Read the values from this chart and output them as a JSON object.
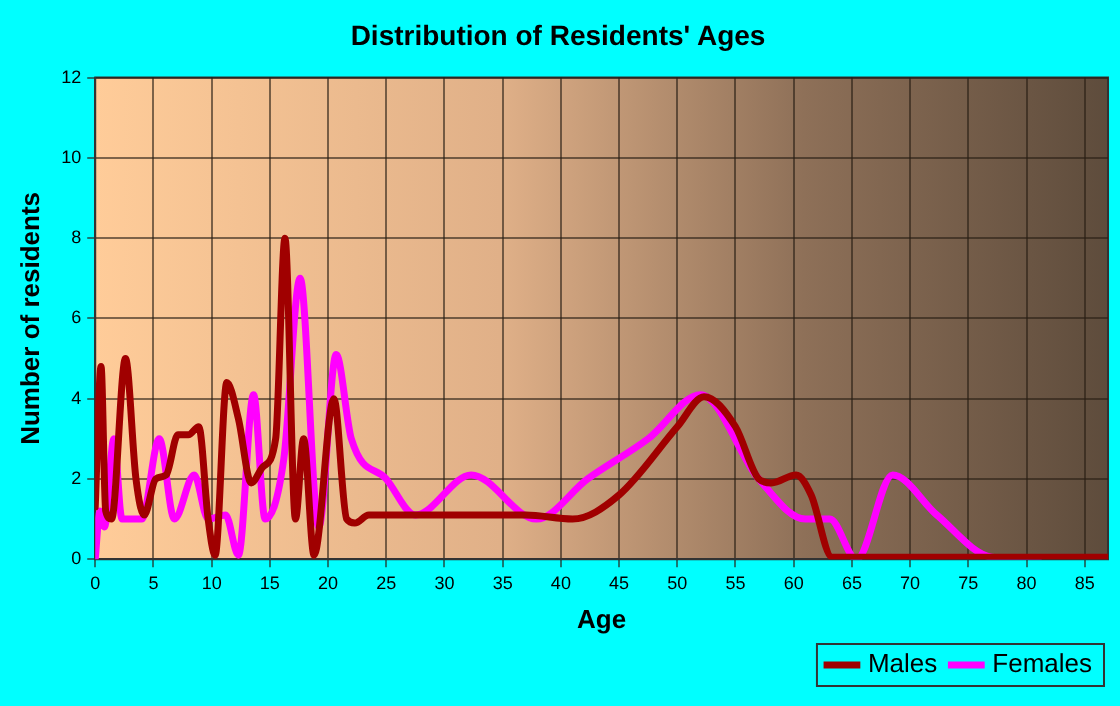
{
  "chart_data": {
    "type": "line",
    "title": "Distribution of Residents' Ages",
    "xlabel": "Age",
    "ylabel": "Number of residents",
    "xlim": [
      0,
      87
    ],
    "xticks": [
      0,
      5,
      10,
      15,
      20,
      25,
      30,
      35,
      40,
      45,
      50,
      55,
      60,
      65,
      70,
      75,
      80,
      85
    ],
    "ylim": [
      0,
      12
    ],
    "yticks": [
      0,
      2,
      4,
      6,
      8,
      10,
      12
    ],
    "grid": true,
    "legend": "bottom right",
    "marker": "none",
    "line_style": "solid",
    "series": [
      {
        "name": "Males",
        "color": "#a00000",
        "x": [
          0,
          0.5,
          0.9,
          1.4,
          2.6,
          3.5,
          4.2,
          5.2,
          6.1,
          7.1,
          8,
          8.9,
          9.7,
          10.3,
          11.3,
          12.3,
          13.4,
          14.4,
          15.5,
          16.3,
          17.2,
          17.9,
          18.8,
          20.5,
          21.6,
          22.3,
          23.5,
          30,
          37,
          41,
          45,
          50,
          52.3,
          55,
          57,
          58.1,
          60.2,
          61.5,
          63.3,
          70,
          80,
          87
        ],
        "values": [
          1.3,
          4.8,
          1.2,
          1.0,
          5.0,
          2.0,
          1.1,
          2.0,
          2.1,
          3.1,
          3.1,
          3.3,
          1.0,
          0.1,
          4.4,
          3.5,
          1.9,
          2.3,
          3.0,
          8.0,
          1.0,
          3.0,
          0.1,
          4.0,
          1.0,
          0.9,
          1.1,
          1.1,
          1.1,
          1.0,
          1.6,
          3.3,
          4.05,
          3.3,
          2.0,
          1.9,
          2.1,
          1.6,
          0.05,
          0.05,
          0.05,
          0.05
        ]
      },
      {
        "name": "Females",
        "color": "#ff00ff",
        "x": [
          0,
          0.4,
          0.8,
          1.6,
          2.3,
          3.2,
          4,
          5.5,
          6.8,
          8.5,
          9.7,
          11.2,
          12.3,
          13.6,
          14.6,
          16.2,
          17.6,
          19.2,
          20.7,
          22,
          25,
          27.5,
          32.3,
          37.9,
          42.3,
          47.5,
          52,
          57,
          61,
          63.1,
          65.4,
          68.5,
          72.3,
          77,
          81
        ],
        "values": [
          0,
          1.2,
          0.8,
          3.0,
          1.0,
          1.0,
          1.0,
          3.0,
          1.0,
          2.1,
          1.0,
          1.1,
          0.1,
          4.1,
          1.0,
          2.5,
          7.0,
          0.8,
          5.1,
          3.0,
          2.0,
          1.1,
          2.1,
          1.0,
          2.0,
          3.0,
          4.1,
          2.0,
          1.0,
          1.0,
          0,
          2.1,
          1.1,
          0.05,
          0
        ]
      }
    ]
  }
}
